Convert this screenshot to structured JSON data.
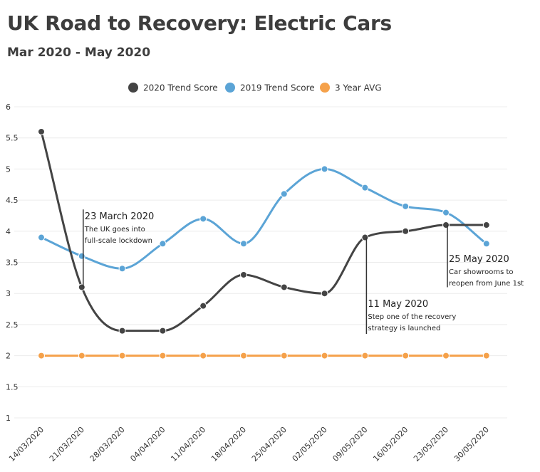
{
  "chart_data": {
    "type": "line",
    "title": "UK Road to Recovery: Electric Cars",
    "subtitle": "Mar 2020 - May 2020",
    "x": [
      "14/03/2020",
      "21/03/2020",
      "28/03/2020",
      "04/04/2020",
      "11/04/2020",
      "18/04/2020",
      "25/04/2020",
      "02/05/2020",
      "09/05/2020",
      "16/05/2020",
      "23/05/2020",
      "30/05/2020"
    ],
    "yticks": [
      "1",
      "1.5",
      "2",
      "2.5",
      "3",
      "3.5",
      "4",
      "4.5",
      "5",
      "5.5",
      "6"
    ],
    "ylim": [
      1,
      6
    ],
    "grid": true,
    "legend_position": "top",
    "series": [
      {
        "name": "2020 Trend Score",
        "color": "#444444",
        "values": [
          5.6,
          3.1,
          2.4,
          2.4,
          2.8,
          3.3,
          3.1,
          3.0,
          3.9,
          4.0,
          4.1,
          4.1
        ]
      },
      {
        "name": "2019 Trend Score",
        "color": "#5ba4d6",
        "values": [
          3.9,
          3.6,
          3.4,
          3.8,
          4.2,
          3.8,
          4.6,
          5.0,
          4.7,
          4.4,
          4.3,
          3.8
        ]
      },
      {
        "name": "3 Year AVG",
        "color": "#f5a14a",
        "values": [
          2.0,
          2.0,
          2.0,
          2.0,
          2.0,
          2.0,
          2.0,
          2.0,
          2.0,
          2.0,
          2.0,
          2.0
        ]
      }
    ],
    "annotations": [
      {
        "index": 1,
        "y_top": 4.35,
        "y_bottom": 3.1,
        "title": "23 March 2020",
        "lines": [
          "The UK goes into",
          "full-scale lockdown"
        ]
      },
      {
        "index": 8,
        "y_top": 3.9,
        "y_bottom": 2.35,
        "title": "11 May 2020",
        "lines": [
          "Step one of the recovery",
          "strategy is launched"
        ]
      },
      {
        "index": 10,
        "y_top": 4.1,
        "y_bottom": 3.1,
        "title": "25 May 2020",
        "lines": [
          "Car showrooms to",
          "reopen from June 1st"
        ]
      }
    ]
  }
}
